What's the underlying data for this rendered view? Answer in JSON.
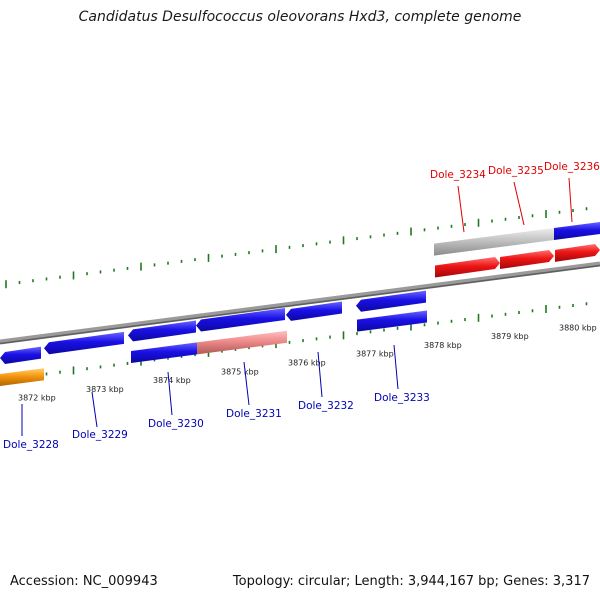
{
  "title": "Candidatus Desulfococcus oleovorans Hxd3, complete genome",
  "footer": {
    "accession": "Accession: NC_009943",
    "summary": "Topology: circular; Length: 3,944,167 bp; Genes: 3,317"
  },
  "colors": {
    "backbone": "#808080",
    "tick": "#1f7a1f",
    "gene_blue": "#1a10e6",
    "gene_red": "#ee1515",
    "gene_pink": "#ee8a8a",
    "gene_orange": "#f5960f",
    "gene_gray": "#c2c2c2",
    "label_forward": "#e00000",
    "label_reverse": "#0000b4"
  },
  "scale_labels": [
    "3872 kbp",
    "3873 kbp",
    "3874 kbp",
    "3875 kbp",
    "3876 kbp",
    "3877 kbp",
    "3878 kbp",
    "3879 kbp",
    "3880 kbp"
  ],
  "genes": [
    {
      "name": "Dole_3228",
      "strand": "reverse",
      "color": "orange"
    },
    {
      "name": "Dole_3229",
      "strand": "reverse",
      "color": "blue"
    },
    {
      "name": "Dole_3230",
      "strand": "reverse",
      "color": "blue"
    },
    {
      "name": "Dole_3231",
      "strand": "reverse",
      "color": "blue"
    },
    {
      "name": "Dole_3232",
      "strand": "reverse",
      "color": "blue"
    },
    {
      "name": "Dole_3233",
      "strand": "reverse",
      "color": "blue"
    },
    {
      "name": "Dole_3234",
      "strand": "forward",
      "color": "red"
    },
    {
      "name": "Dole_3235",
      "strand": "forward",
      "color": "red"
    },
    {
      "name": "Dole_3236",
      "strand": "forward",
      "color": "red"
    }
  ]
}
